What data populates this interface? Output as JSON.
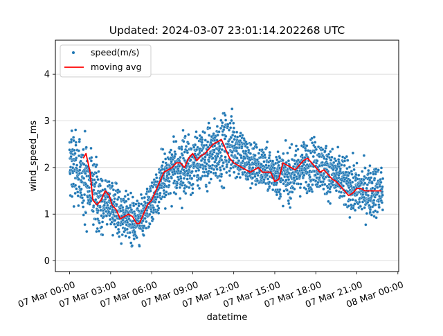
{
  "chart_data": {
    "type": "scatter",
    "title": "Updated: 2024-03-07 23:01:14.202268 UTC",
    "xlabel": "datetime",
    "ylabel": "wind_speed_ms",
    "x_unit": "hours",
    "xlim": [
      -1.04,
      24.06
    ],
    "ylim": [
      -0.23,
      4.73
    ],
    "x_ticks": [
      {
        "value": 0,
        "label": "07 Mar 00:00"
      },
      {
        "value": 3,
        "label": "07 Mar 03:00"
      },
      {
        "value": 6,
        "label": "07 Mar 06:00"
      },
      {
        "value": 9,
        "label": "07 Mar 09:00"
      },
      {
        "value": 12,
        "label": "07 Mar 12:00"
      },
      {
        "value": 15,
        "label": "07 Mar 15:00"
      },
      {
        "value": 18,
        "label": "07 Mar 18:00"
      },
      {
        "value": 21,
        "label": "07 Mar 21:00"
      },
      {
        "value": 24,
        "label": "08 Mar 00:00"
      }
    ],
    "y_ticks": [
      0,
      1,
      2,
      3,
      4
    ],
    "grid": "horizontal",
    "legend": {
      "position": "top-left"
    },
    "colors": {
      "scatter": "#1f77b4",
      "moving_avg": "#ff0000",
      "grid": "#d3d3d3"
    },
    "series": [
      {
        "name": "speed(m/s)",
        "kind": "scatter",
        "x_range": [
          0,
          22.9
        ],
        "point_count": 2400,
        "envelope_hourly": [
          {
            "hour": 0,
            "mean": 2.2,
            "spread": 1.0
          },
          {
            "hour": 1,
            "mean": 1.8,
            "spread": 1.0
          },
          {
            "hour": 2,
            "mean": 1.3,
            "spread": 0.9
          },
          {
            "hour": 3,
            "mean": 1.2,
            "spread": 0.7
          },
          {
            "hour": 4,
            "mean": 1.0,
            "spread": 0.6
          },
          {
            "hour": 5,
            "mean": 0.8,
            "spread": 0.6
          },
          {
            "hour": 6,
            "mean": 1.3,
            "spread": 0.6
          },
          {
            "hour": 7,
            "mean": 1.8,
            "spread": 0.7
          },
          {
            "hour": 8,
            "mean": 2.0,
            "spread": 0.8
          },
          {
            "hour": 9,
            "mean": 2.1,
            "spread": 0.8
          },
          {
            "hour": 10,
            "mean": 2.2,
            "spread": 0.8
          },
          {
            "hour": 11,
            "mean": 2.4,
            "spread": 0.9
          },
          {
            "hour": 12,
            "mean": 2.5,
            "spread": 0.9
          },
          {
            "hour": 13,
            "mean": 2.1,
            "spread": 0.7
          },
          {
            "hour": 14,
            "mean": 2.0,
            "spread": 0.6
          },
          {
            "hour": 15,
            "mean": 1.9,
            "spread": 0.6
          },
          {
            "hour": 16,
            "mean": 1.8,
            "spread": 0.7
          },
          {
            "hour": 17,
            "mean": 2.0,
            "spread": 0.7
          },
          {
            "hour": 18,
            "mean": 2.1,
            "spread": 0.7
          },
          {
            "hour": 19,
            "mean": 1.9,
            "spread": 0.7
          },
          {
            "hour": 20,
            "mean": 1.7,
            "spread": 0.7
          },
          {
            "hour": 21,
            "mean": 1.5,
            "spread": 0.7
          },
          {
            "hour": 22,
            "mean": 1.5,
            "spread": 0.7
          }
        ]
      },
      {
        "name": "moving avg",
        "kind": "line",
        "x": [
          1.0,
          1.2,
          1.5,
          1.7,
          2.0,
          2.3,
          2.6,
          2.9,
          3.1,
          3.4,
          3.7,
          4.0,
          4.3,
          4.6,
          4.9,
          5.1,
          5.4,
          5.7,
          6.0,
          6.3,
          6.6,
          6.9,
          7.2,
          7.5,
          7.8,
          8.1,
          8.4,
          8.7,
          9.0,
          9.3,
          9.6,
          9.9,
          10.2,
          10.5,
          10.8,
          11.1,
          11.4,
          11.7,
          12.0,
          12.3,
          12.6,
          12.9,
          13.2,
          13.5,
          13.8,
          14.1,
          14.4,
          14.7,
          15.0,
          15.3,
          15.6,
          15.9,
          16.2,
          16.5,
          16.8,
          17.1,
          17.4,
          17.7,
          18.0,
          18.3,
          18.6,
          18.9,
          19.2,
          19.5,
          19.8,
          20.1,
          20.4,
          20.7,
          21.0,
          21.3,
          21.6,
          21.9,
          22.2,
          22.5,
          22.8
        ],
        "y": [
          2.2,
          2.3,
          1.9,
          1.3,
          1.2,
          1.3,
          1.5,
          1.4,
          1.2,
          1.1,
          0.9,
          0.95,
          1.0,
          0.95,
          0.8,
          0.8,
          1.0,
          1.2,
          1.3,
          1.5,
          1.7,
          1.9,
          1.95,
          2.0,
          2.1,
          2.1,
          2.0,
          2.2,
          2.3,
          2.15,
          2.25,
          2.3,
          2.4,
          2.5,
          2.55,
          2.6,
          2.4,
          2.2,
          2.1,
          2.05,
          2.0,
          1.95,
          1.9,
          1.95,
          2.0,
          1.9,
          1.9,
          1.9,
          1.7,
          1.75,
          2.1,
          2.05,
          2.0,
          1.95,
          2.05,
          2.15,
          2.2,
          2.1,
          2.0,
          1.9,
          1.95,
          1.85,
          1.75,
          1.7,
          1.6,
          1.5,
          1.4,
          1.45,
          1.55,
          1.55,
          1.5,
          1.5,
          1.5,
          1.5,
          1.5
        ]
      }
    ]
  }
}
